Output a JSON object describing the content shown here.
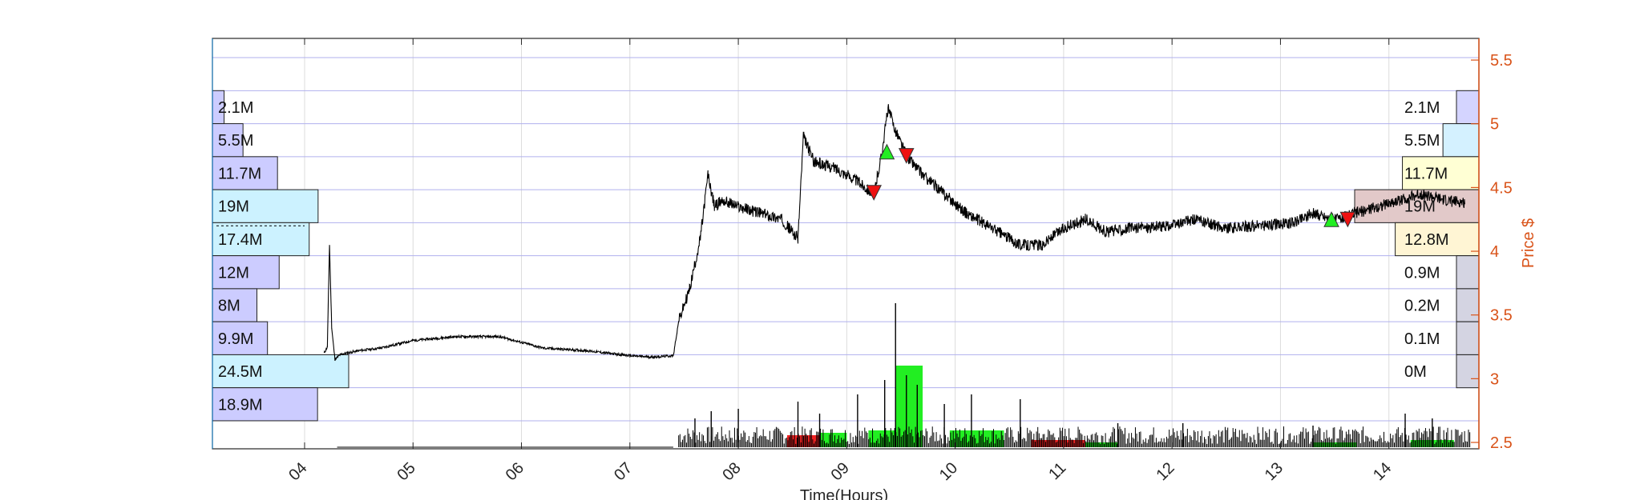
{
  "chart_data": {
    "type": "line",
    "x_axis": {
      "label": "Time(Hours)",
      "range": [
        3.15,
        14.83
      ],
      "ticks": [
        "04",
        "05",
        "06",
        "07",
        "08",
        "09",
        "10",
        "11",
        "12",
        "13",
        "14"
      ]
    },
    "y_axis_right": {
      "label": "Price $",
      "range": [
        2.45,
        5.67
      ],
      "ticks": [
        "2.5",
        "3",
        "3.5",
        "4",
        "4.5",
        "5",
        "5.5"
      ],
      "color": "#d95319"
    },
    "grid": true,
    "price_path": [
      [
        4.18,
        3.2
      ],
      [
        4.21,
        3.25
      ],
      [
        4.23,
        4.05
      ],
      [
        4.25,
        3.4
      ],
      [
        4.28,
        3.15
      ],
      [
        4.33,
        3.19
      ],
      [
        4.5,
        3.22
      ],
      [
        4.7,
        3.24
      ],
      [
        5.0,
        3.3
      ],
      [
        5.4,
        3.33
      ],
      [
        5.8,
        3.33
      ],
      [
        6.2,
        3.24
      ],
      [
        6.6,
        3.22
      ],
      [
        7.0,
        3.18
      ],
      [
        7.2,
        3.17
      ],
      [
        7.4,
        3.18
      ],
      [
        7.45,
        3.45
      ],
      [
        7.55,
        3.7
      ],
      [
        7.65,
        4.1
      ],
      [
        7.72,
        4.6
      ],
      [
        7.78,
        4.35
      ],
      [
        7.85,
        4.4
      ],
      [
        8.0,
        4.35
      ],
      [
        8.2,
        4.3
      ],
      [
        8.4,
        4.25
      ],
      [
        8.55,
        4.1
      ],
      [
        8.6,
        4.9
      ],
      [
        8.7,
        4.7
      ],
      [
        8.9,
        4.65
      ],
      [
        9.1,
        4.55
      ],
      [
        9.25,
        4.45
      ],
      [
        9.32,
        4.75
      ],
      [
        9.38,
        5.12
      ],
      [
        9.45,
        4.95
      ],
      [
        9.55,
        4.75
      ],
      [
        9.7,
        4.6
      ],
      [
        9.9,
        4.45
      ],
      [
        10.1,
        4.3
      ],
      [
        10.3,
        4.2
      ],
      [
        10.6,
        4.05
      ],
      [
        10.8,
        4.05
      ],
      [
        11.0,
        4.18
      ],
      [
        11.2,
        4.25
      ],
      [
        11.4,
        4.15
      ],
      [
        11.6,
        4.18
      ],
      [
        12.0,
        4.2
      ],
      [
        12.2,
        4.25
      ],
      [
        12.5,
        4.18
      ],
      [
        12.8,
        4.2
      ],
      [
        13.1,
        4.22
      ],
      [
        13.3,
        4.3
      ],
      [
        13.5,
        4.25
      ],
      [
        13.7,
        4.3
      ],
      [
        13.9,
        4.35
      ],
      [
        14.1,
        4.4
      ],
      [
        14.3,
        4.45
      ],
      [
        14.5,
        4.4
      ],
      [
        14.7,
        4.38
      ]
    ],
    "volume_spikes": [
      [
        7.6,
        0.6
      ],
      [
        7.75,
        0.75
      ],
      [
        8.0,
        0.8
      ],
      [
        8.55,
        0.95
      ],
      [
        8.75,
        0.7
      ],
      [
        9.1,
        1.1
      ],
      [
        9.35,
        1.4
      ],
      [
        9.45,
        3.0
      ],
      [
        9.55,
        1.5
      ],
      [
        9.65,
        1.3
      ],
      [
        9.9,
        0.9
      ],
      [
        10.15,
        1.1
      ],
      [
        10.6,
        1.0
      ],
      [
        11.5,
        0.5
      ],
      [
        12.1,
        0.5
      ],
      [
        13.3,
        0.45
      ],
      [
        14.15,
        0.7
      ],
      [
        14.4,
        0.6
      ]
    ],
    "volume_blocks": [
      {
        "x": [
          8.45,
          8.95
        ],
        "h": 0.25,
        "color": "red"
      },
      {
        "x": [
          8.75,
          9.0
        ],
        "h": 0.3,
        "color": "green"
      },
      {
        "x": [
          9.2,
          9.45
        ],
        "h": 0.35,
        "color": "green"
      },
      {
        "x": [
          9.45,
          9.7
        ],
        "h": 1.7,
        "color": "green"
      },
      {
        "x": [
          9.95,
          10.45
        ],
        "h": 0.35,
        "color": "green"
      },
      {
        "x": [
          10.7,
          11.2
        ],
        "h": 0.15,
        "color": "red"
      },
      {
        "x": [
          11.2,
          11.5
        ],
        "h": 0.1,
        "color": "green"
      },
      {
        "x": [
          13.3,
          13.7
        ],
        "h": 0.1,
        "color": "green"
      },
      {
        "x": [
          14.2,
          14.6
        ],
        "h": 0.15,
        "color": "green"
      }
    ],
    "trade_markers": [
      {
        "type": "sell",
        "x": 9.25,
        "y": 4.46
      },
      {
        "type": "buy",
        "x": 9.37,
        "y": 4.78
      },
      {
        "type": "sell",
        "x": 9.55,
        "y": 4.75
      },
      {
        "type": "buy",
        "x": 13.47,
        "y": 4.25
      },
      {
        "type": "sell",
        "x": 13.62,
        "y": 4.25
      }
    ],
    "volume_profile_left": [
      {
        "label": "2.1M",
        "value": 2.1
      },
      {
        "label": "5.5M",
        "value": 5.5
      },
      {
        "label": "11.7M",
        "value": 11.7
      },
      {
        "label": "19M",
        "value": 19
      },
      {
        "label": "17.4M",
        "value": 17.4
      },
      {
        "label": "12M",
        "value": 12
      },
      {
        "label": "8M",
        "value": 8
      },
      {
        "label": "9.9M",
        "value": 9.9
      },
      {
        "label": "24.5M",
        "value": 24.5
      },
      {
        "label": "18.9M",
        "value": 18.9
      }
    ],
    "volume_profile_right": [
      {
        "label": "2.1M",
        "value": 2.1,
        "color": "#ccccff"
      },
      {
        "label": "5.5M",
        "value": 5.5,
        "color": "#cceeff"
      },
      {
        "label": "11.7M",
        "value": 11.7,
        "color": "#ffffcc"
      },
      {
        "label": "19M",
        "value": 19,
        "color": "#ddbfbf"
      },
      {
        "label": "12.8M",
        "value": 12.8,
        "color": "#fff3cc"
      },
      {
        "label": "0.9M",
        "value": 0.9,
        "color": "#ccccdd"
      },
      {
        "label": "0.2M",
        "value": 0.2,
        "color": "#ccccdd"
      },
      {
        "label": "0.1M",
        "value": 0.1,
        "color": "#ccccdd"
      },
      {
        "label": "0M",
        "value": 0.0,
        "color": "#ccccdd"
      }
    ],
    "colors": {
      "axis_right": "#d95319",
      "grid": "#c9c9f0",
      "profile_left_a": "#ccccff",
      "profile_left_b": "#ccf2ff",
      "buy": "#22ee22",
      "sell": "#ee1111",
      "volume_green": "#22ee22",
      "volume_red": "#ee2222"
    }
  }
}
